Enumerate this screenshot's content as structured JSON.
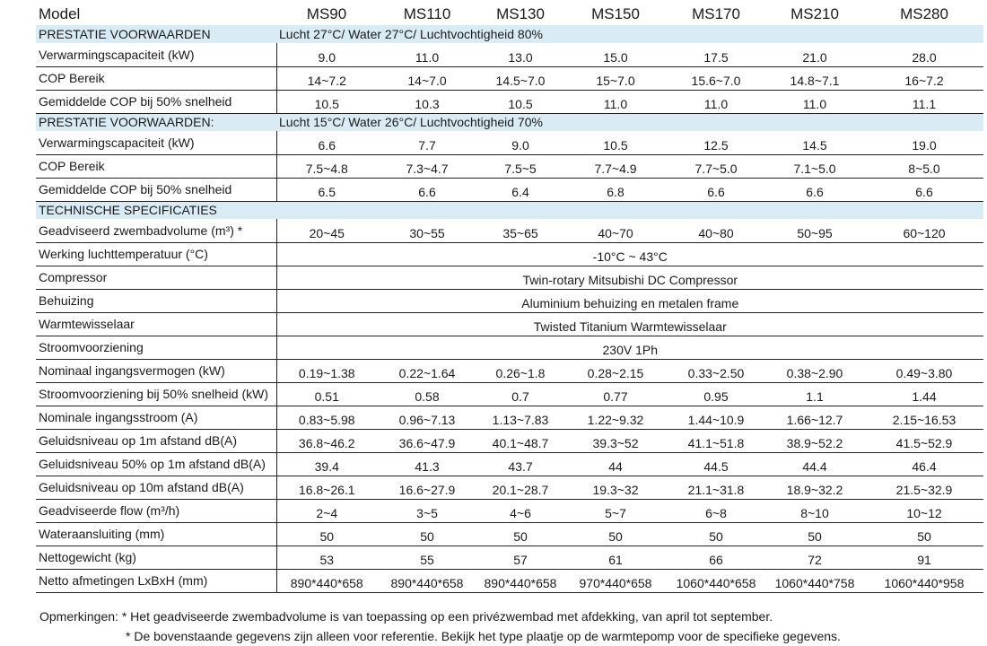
{
  "header": {
    "label": "Model",
    "models": [
      "MS90",
      "MS110",
      "MS130",
      "MS150",
      "MS170",
      "MS210",
      "MS280"
    ]
  },
  "sections": [
    {
      "title": "PRESTATIE VOORWAARDEN",
      "condition": "Lucht 27°C/ Water 27°C/ Luchtvochtigheid 80%",
      "rows": [
        {
          "label": "Verwarmingscapaciteit (kW)",
          "values": [
            "9.0",
            "11.0",
            "13.0",
            "15.0",
            "17.5",
            "21.0",
            "28.0"
          ]
        },
        {
          "label": "COP Bereik",
          "values": [
            "14~7.2",
            "14~7.0",
            "14.5~7.0",
            "15~7.0",
            "15.6~7.0",
            "14.8~7.1",
            "16~7.2"
          ]
        },
        {
          "label": "Gemiddelde COP bij 50% snelheid",
          "values": [
            "10.5",
            "10.3",
            "10.5",
            "11.0",
            "11.0",
            "11.0",
            "11.1"
          ]
        }
      ]
    },
    {
      "title": "PRESTATIE VOORWAARDEN:",
      "condition": "Lucht 15°C/ Water 26°C/ Luchtvochtigheid 70%",
      "rows": [
        {
          "label": "Verwarmingscapaciteit (kW)",
          "values": [
            "6.6",
            "7.7",
            "9.0",
            "10.5",
            "12.5",
            "14.5",
            "19.0"
          ]
        },
        {
          "label": "COP Bereik",
          "values": [
            "7.5~4.8",
            "7.3~4.7",
            "7.5~5",
            "7.7~4.9",
            "7.7~5.0",
            "7.1~5.0",
            "8~5.0"
          ]
        },
        {
          "label": "Gemiddelde COP bij 50% snelheid",
          "values": [
            "6.5",
            "6.6",
            "6.4",
            "6.8",
            "6.6",
            "6.6",
            "6.6"
          ]
        }
      ]
    },
    {
      "title": "TECHNISCHE SPECIFICATIES",
      "condition": "",
      "rows": [
        {
          "label": "Geadviseerd zwembadvolume (m³) *",
          "values": [
            "20~45",
            "30~55",
            "35~65",
            "40~70",
            "40~80",
            "50~95",
            "60~120"
          ]
        },
        {
          "label": "Werking luchttemperatuur (°C)",
          "span": "-10°C ~ 43°C"
        },
        {
          "label": "Compressor",
          "span": "Twin-rotary Mitsubishi DC Compressor"
        },
        {
          "label": "Behuizing",
          "span": "Aluminium behuizing en metalen frame"
        },
        {
          "label": "Warmtewisselaar",
          "span": "Twisted Titanium Warmtewisselaar"
        },
        {
          "label": "Stroomvoorziening",
          "span": "230V 1Ph"
        },
        {
          "label": "Nominaal ingangsvermogen (kW)",
          "values": [
            "0.19~1.38",
            "0.22~1.64",
            "0.26~1.8",
            "0.28~2.15",
            "0.33~2.50",
            "0.38~2.90",
            "0.49~3.80"
          ]
        },
        {
          "label": "Stroomvoorziening bij 50% snelheid (kW)",
          "values": [
            "0.51",
            "0.58",
            "0.7",
            "0.77",
            "0.95",
            "1.1",
            "1.44"
          ]
        },
        {
          "label": "Nominale ingangsstroom (A)",
          "values": [
            "0.83~5.98",
            "0.96~7.13",
            "1.13~7.83",
            "1.22~9.32",
            "1.44~10.9",
            "1.66~12.7",
            "2.15~16.53"
          ]
        },
        {
          "label": "Geluidsniveau op 1m afstand dB(A)",
          "values": [
            "36.8~46.2",
            "36.6~47.9",
            "40.1~48.7",
            "39.3~52",
            "41.1~51.8",
            "38.9~52.2",
            "41.5~52.9"
          ]
        },
        {
          "label": "Geluidsniveau 50% op 1m afstand dB(A)",
          "values": [
            "39.4",
            "41.3",
            "43.7",
            "44",
            "44.5",
            "44.4",
            "46.4"
          ]
        },
        {
          "label": "Geluidsniveau op 10m afstand dB(A)",
          "values": [
            "16.8~26.1",
            "16.6~27.9",
            "20.1~28.7",
            "19.3~32",
            "21.1~31.8",
            "18.9~32.2",
            "21.5~32.9"
          ]
        },
        {
          "label": "Geadviseerde flow (m³/h)",
          "values": [
            "2~4",
            "3~5",
            "4~6",
            "5~7",
            "6~8",
            "8~10",
            "10~12"
          ]
        },
        {
          "label": "Wateraansluiting (mm)",
          "values": [
            "50",
            "50",
            "50",
            "50",
            "50",
            "50",
            "50"
          ]
        },
        {
          "label": "Nettogewicht (kg)",
          "values": [
            "53",
            "55",
            "57",
            "61",
            "66",
            "72",
            "91"
          ]
        },
        {
          "label": "Netto afmetingen LxBxH (mm)",
          "values": [
            "890*440*658",
            "890*440*658",
            "890*440*658",
            "970*440*658",
            "1060*440*658",
            "1060*440*758",
            "1060*440*958"
          ]
        }
      ]
    }
  ],
  "remarks": {
    "label": "Opmerkingen:",
    "line1": "* Het geadviseerde zwembadvolume is van toepassing op een privézwembad met afdekking, van april tot september.",
    "line2": "* De bovenstaande gegevens zijn alleen voor referentie. Bekijk het type plaatje op de warmtepomp voor de specifieke gegevens."
  }
}
